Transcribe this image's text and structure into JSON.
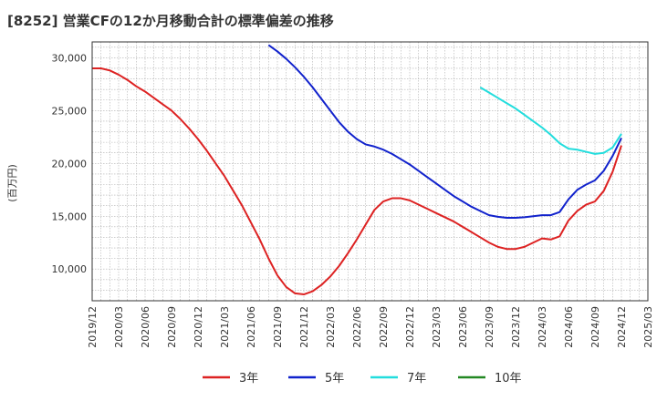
{
  "chart_data": {
    "type": "line",
    "title": "[8252]  営業CFの12か月移動合計の標準偏差の推移",
    "ylabel": "(百万円)",
    "xlabel": "",
    "ylim": [
      7000,
      31500
    ],
    "yticks": [
      10000,
      15000,
      20000,
      25000,
      30000
    ],
    "ytick_labels": [
      "10,000",
      "15,000",
      "20,000",
      "25,000",
      "30,000"
    ],
    "xlim": [
      "2019-12",
      "2025-03"
    ],
    "xtick_labels": [
      "2019/12",
      "2020/03",
      "2020/06",
      "2020/09",
      "2020/12",
      "2021/03",
      "2021/06",
      "2021/09",
      "2021/12",
      "2022/03",
      "2022/06",
      "2022/09",
      "2022/12",
      "2023/03",
      "2023/06",
      "2023/09",
      "2023/12",
      "2024/03",
      "2024/06",
      "2024/09",
      "2024/12",
      "2025/03"
    ],
    "grid": true,
    "legend_position": "bottom",
    "series": [
      {
        "name": "3年",
        "color": "#dd2222",
        "x": [
          "2019-12",
          "2020-01",
          "2020-02",
          "2020-03",
          "2020-04",
          "2020-05",
          "2020-06",
          "2020-07",
          "2020-08",
          "2020-09",
          "2020-10",
          "2020-11",
          "2020-12",
          "2021-01",
          "2021-02",
          "2021-03",
          "2021-04",
          "2021-05",
          "2021-06",
          "2021-07",
          "2021-08",
          "2021-09",
          "2021-10",
          "2021-11",
          "2021-12",
          "2022-01",
          "2022-02",
          "2022-03",
          "2022-04",
          "2022-05",
          "2022-06",
          "2022-07",
          "2022-08",
          "2022-09",
          "2022-10",
          "2022-11",
          "2022-12",
          "2023-01",
          "2023-02",
          "2023-03",
          "2023-04",
          "2023-05",
          "2023-06",
          "2023-07",
          "2023-08",
          "2023-09",
          "2023-10",
          "2023-11",
          "2023-12",
          "2024-01",
          "2024-02",
          "2024-03",
          "2024-04",
          "2024-05",
          "2024-06",
          "2024-07",
          "2024-08",
          "2024-09",
          "2024-10",
          "2024-11",
          "2024-12"
        ],
        "values": [
          29000,
          29000,
          28800,
          28400,
          27900,
          27300,
          26800,
          26200,
          25600,
          25000,
          24200,
          23300,
          22300,
          21200,
          20000,
          18800,
          17400,
          16000,
          14400,
          12800,
          11000,
          9400,
          8300,
          7700,
          7600,
          7900,
          8500,
          9300,
          10300,
          11500,
          12800,
          14200,
          15600,
          16400,
          16700,
          16700,
          16500,
          16100,
          15700,
          15300,
          14900,
          14500,
          14000,
          13500,
          13000,
          12500,
          12100,
          11900,
          11900,
          12100,
          12500,
          12900,
          12800,
          13100,
          14600,
          15500,
          16100,
          16400,
          17400,
          19200,
          21700
        ]
      },
      {
        "name": "5年",
        "color": "#1122cc",
        "x": [
          "2021-08",
          "2021-09",
          "2021-10",
          "2021-11",
          "2021-12",
          "2022-01",
          "2022-02",
          "2022-03",
          "2022-04",
          "2022-05",
          "2022-06",
          "2022-07",
          "2022-08",
          "2022-09",
          "2022-10",
          "2022-11",
          "2022-12",
          "2023-01",
          "2023-02",
          "2023-03",
          "2023-04",
          "2023-05",
          "2023-06",
          "2023-07",
          "2023-08",
          "2023-09",
          "2023-10",
          "2023-11",
          "2023-12",
          "2024-01",
          "2024-02",
          "2024-03",
          "2024-04",
          "2024-05",
          "2024-06",
          "2024-07",
          "2024-08",
          "2024-09",
          "2024-10",
          "2024-11",
          "2024-12"
        ],
        "values": [
          31200,
          30600,
          29900,
          29100,
          28200,
          27200,
          26100,
          25000,
          23900,
          23000,
          22300,
          21800,
          21600,
          21300,
          20900,
          20400,
          19900,
          19300,
          18700,
          18100,
          17500,
          16900,
          16400,
          15900,
          15500,
          15100,
          14950,
          14850,
          14850,
          14900,
          15000,
          15100,
          15100,
          15400,
          16600,
          17500,
          18000,
          18400,
          19300,
          20700,
          22400
        ]
      },
      {
        "name": "7年",
        "color": "#22dddd",
        "x": [
          "2023-08",
          "2023-09",
          "2023-10",
          "2023-11",
          "2023-12",
          "2024-01",
          "2024-02",
          "2024-03",
          "2024-04",
          "2024-05",
          "2024-06",
          "2024-07",
          "2024-08",
          "2024-09",
          "2024-10",
          "2024-11",
          "2024-12"
        ],
        "values": [
          27200,
          26700,
          26200,
          25700,
          25200,
          24600,
          24000,
          23400,
          22700,
          21900,
          21400,
          21300,
          21100,
          20900,
          21000,
          21500,
          22800
        ]
      },
      {
        "name": "10年",
        "color": "#228822",
        "x": [],
        "values": []
      }
    ]
  }
}
